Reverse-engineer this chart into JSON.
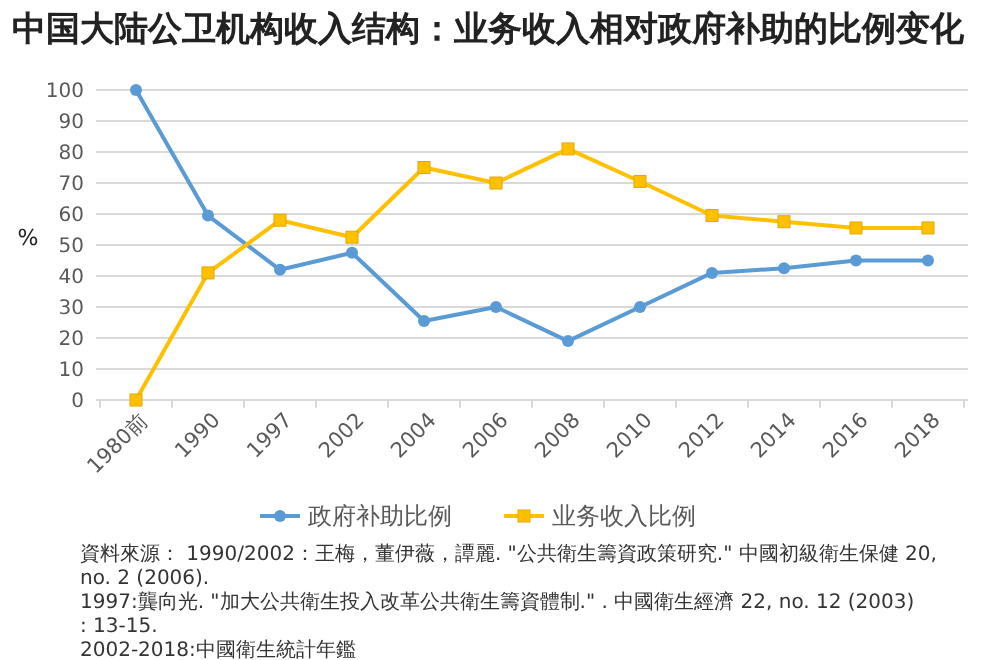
{
  "chart_data": {
    "type": "line",
    "title": "中国大陆公卫机构收入结构：业务收入相对政府补助的比例变化",
    "ylabel": "%",
    "categories": [
      "1980前",
      "1990",
      "1997",
      "2002",
      "2004",
      "2006",
      "2008",
      "2010",
      "2012",
      "2014",
      "2016",
      "2018"
    ],
    "series": [
      {
        "name": "政府补助比例",
        "color": "#5b9bd5",
        "marker": "circle",
        "values": [
          100,
          59.5,
          42,
          47.5,
          25.5,
          30,
          19,
          30,
          41,
          42.5,
          45,
          45
        ]
      },
      {
        "name": "业务收入比例",
        "color": "#ffc000",
        "marker": "square",
        "values": [
          0,
          41,
          58,
          52.5,
          75,
          70,
          81,
          70.5,
          59.5,
          57.5,
          55.5,
          55.5
        ]
      }
    ],
    "ylim": [
      0,
      100
    ],
    "yticks": [
      0,
      10,
      20,
      30,
      40,
      50,
      60,
      70,
      80,
      90,
      100
    ],
    "grid": "y",
    "legend": "bottom",
    "line_style": "solid",
    "annotations": [
      "資料來源： 1990/2002：王梅，董伊薇，譚麗. \"公共衛生籌資政策研究.\" 中國初級衛生保健 20, no. 2 (2006).",
      "1997:龔向光. \"加大公共衛生投入改革公共衛生籌資體制.\" . 中國衛生經濟 22, no. 12 (2003): 13-15.",
      "2002-2018:中國衛生統計年鑑"
    ]
  }
}
